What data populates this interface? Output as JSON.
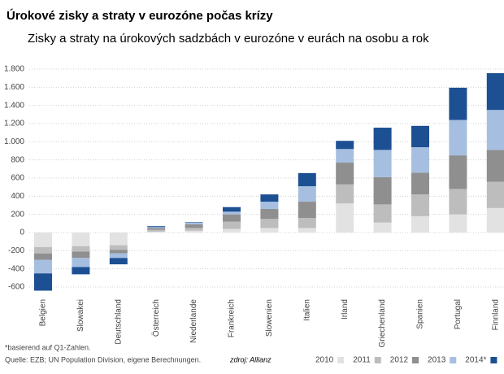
{
  "chart_data": {
    "type": "stacked-bar",
    "title": "Úrokové zisky a straty v eurozóne počas krízy",
    "subtitle": "Zisky a straty na úrokových sadzbách v eurozóne v eurách na osobu a rok",
    "note": "*basierend auf Q1-Zahlen.",
    "source": "Quelle: EZB; UN Population Division, eigene Berechnungen.",
    "credit": "zdroj: Allianz",
    "categories": [
      "Belgien",
      "Slowakei",
      "Deutschland",
      "Österreich",
      "Niederlande",
      "Frankreich",
      "Slowenien",
      "Italien",
      "Irland",
      "Griechenland",
      "Spanien",
      "Portugal",
      "Finnland"
    ],
    "series": [
      {
        "name": "2010",
        "color": "#e2e2e2",
        "values": [
          -160,
          -150,
          -140,
          10,
          20,
          40,
          50,
          50,
          320,
          110,
          180,
          200,
          270
        ]
      },
      {
        "name": "2011",
        "color": "#bdbdbd",
        "values": [
          -70,
          -60,
          -50,
          20,
          30,
          80,
          100,
          110,
          210,
          200,
          240,
          280,
          290
        ]
      },
      {
        "name": "2012",
        "color": "#8f8f8f",
        "values": [
          -70,
          -70,
          -40,
          20,
          40,
          80,
          110,
          180,
          240,
          300,
          240,
          370,
          350
        ]
      },
      {
        "name": "2013",
        "color": "#a6bfe0",
        "values": [
          -150,
          -100,
          -50,
          10,
          20,
          30,
          80,
          170,
          150,
          300,
          280,
          390,
          440
        ]
      },
      {
        "name": "2014*",
        "color": "#1d4f93",
        "values": [
          -190,
          -80,
          -70,
          10,
          5,
          50,
          80,
          145,
          90,
          245,
          235,
          355,
          405
        ]
      }
    ],
    "ylim": [
      -650,
      1800
    ],
    "yticks": [
      -600,
      -400,
      -200,
      0,
      200,
      400,
      600,
      800,
      {
        "value": 1000,
        "label": "1.000"
      },
      {
        "value": 1200,
        "label": "1.200"
      },
      {
        "value": 1400,
        "label": "1.400"
      },
      {
        "value": 1600,
        "label": "1.600"
      },
      {
        "value": 1800,
        "label": "1.800"
      }
    ],
    "grid": true
  }
}
